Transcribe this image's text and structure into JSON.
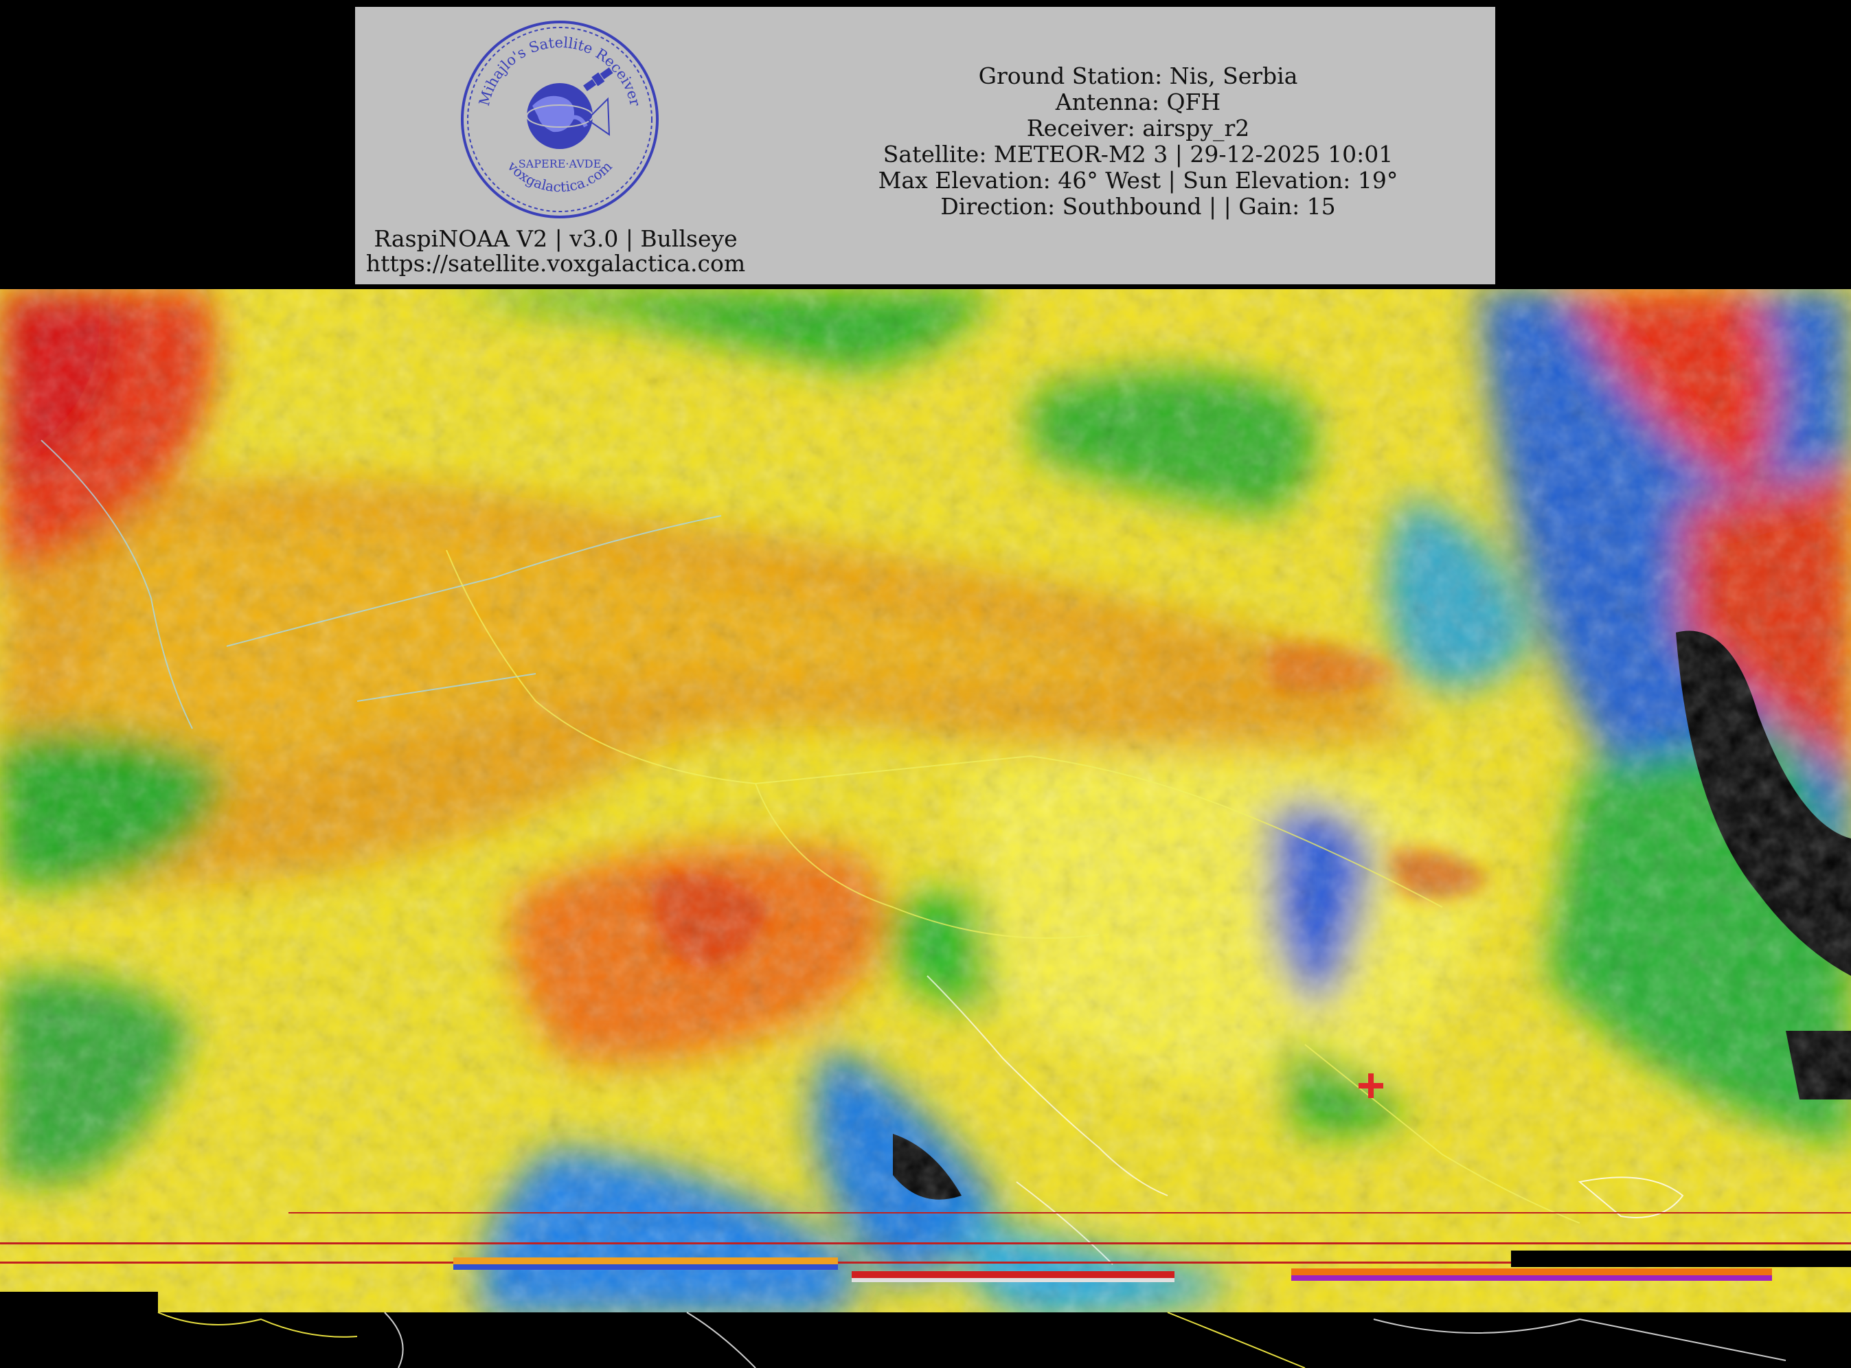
{
  "header": {
    "logo_text_top": "Mihajlo's Satellite Receiver",
    "logo_text_mid": "SAPERE·AVDE",
    "logo_text_bottom": "voxgalactica.com",
    "footer_line1": "RaspiNOAA V2 | v3.0 | Bullseye",
    "footer_line2": "https://satellite.voxgalactica.com",
    "info_lines": [
      "Ground Station: Nis, Serbia",
      "Antenna: QFH",
      "Receiver: airspy_r2",
      "Satellite: METEOR-M2 3 | 29-12-2025 10:01",
      "Max Elevation: 46° West | Sun Elevation: 19°",
      "Direction: Southbound | | Gain: 15"
    ]
  },
  "colors": {
    "header_bg": "#c0c0c0",
    "stamp_blue": "#3a40b8",
    "background": "#000000",
    "station_marker": "#e0282a"
  }
}
